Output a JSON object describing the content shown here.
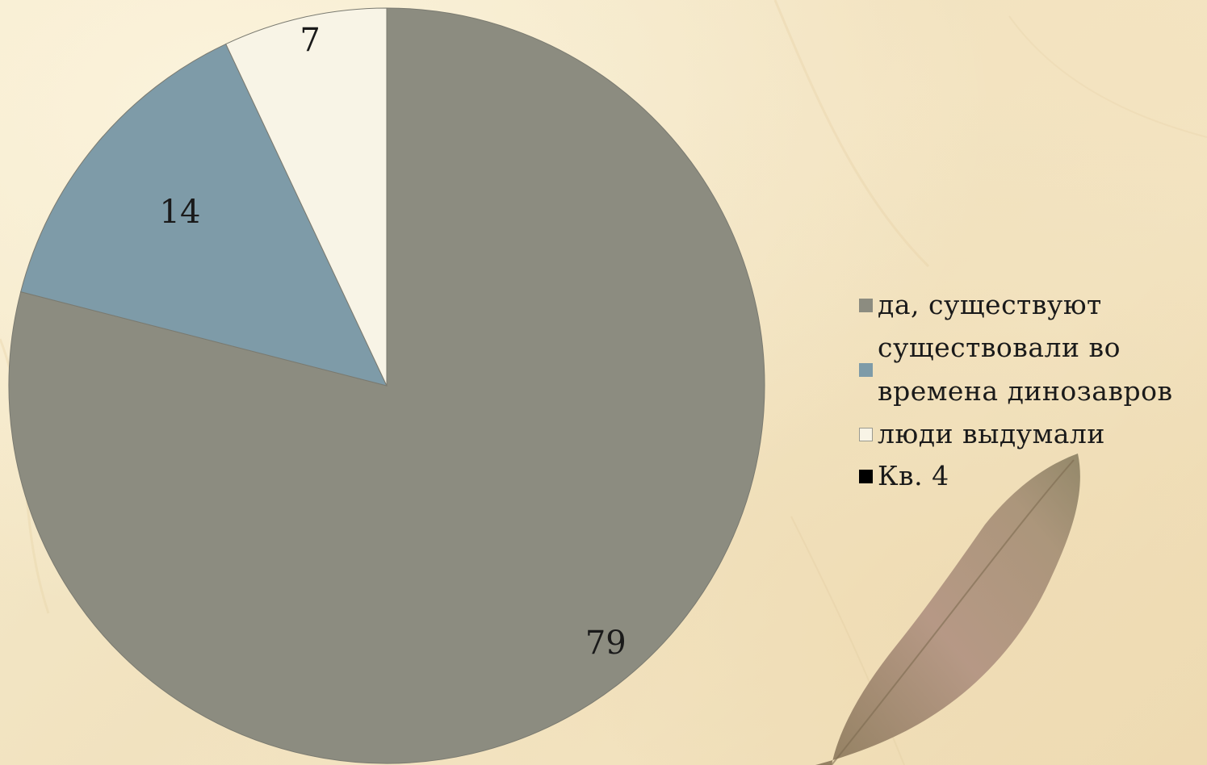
{
  "chart_data": {
    "type": "pie",
    "title": "",
    "categories": [
      "да, существуют",
      "существовали во\nвремена динозавров",
      "люди выдумали",
      "Кв. 4"
    ],
    "values": [
      79,
      14,
      7,
      0
    ],
    "data_labels": [
      "79",
      "14",
      "7",
      ""
    ],
    "colors": [
      "#8c8c80",
      "#7e9ba8",
      "#f8f4e6",
      "#000000"
    ],
    "slice_border_color": "#7a7a70",
    "legend_placement": "right",
    "legend": [
      {
        "label": "да, существуют",
        "color": "#8c8c80"
      },
      {
        "label": "существовали во\nвремена динозавров",
        "color": "#7e9ba8"
      },
      {
        "label": "люди выдумали",
        "color": "#f8f4e6"
      },
      {
        "label": "Кв. 4",
        "color": "#000000"
      }
    ]
  },
  "background": {
    "paper_color": "#f4e7c7",
    "leaf_color": "#a08b70"
  }
}
